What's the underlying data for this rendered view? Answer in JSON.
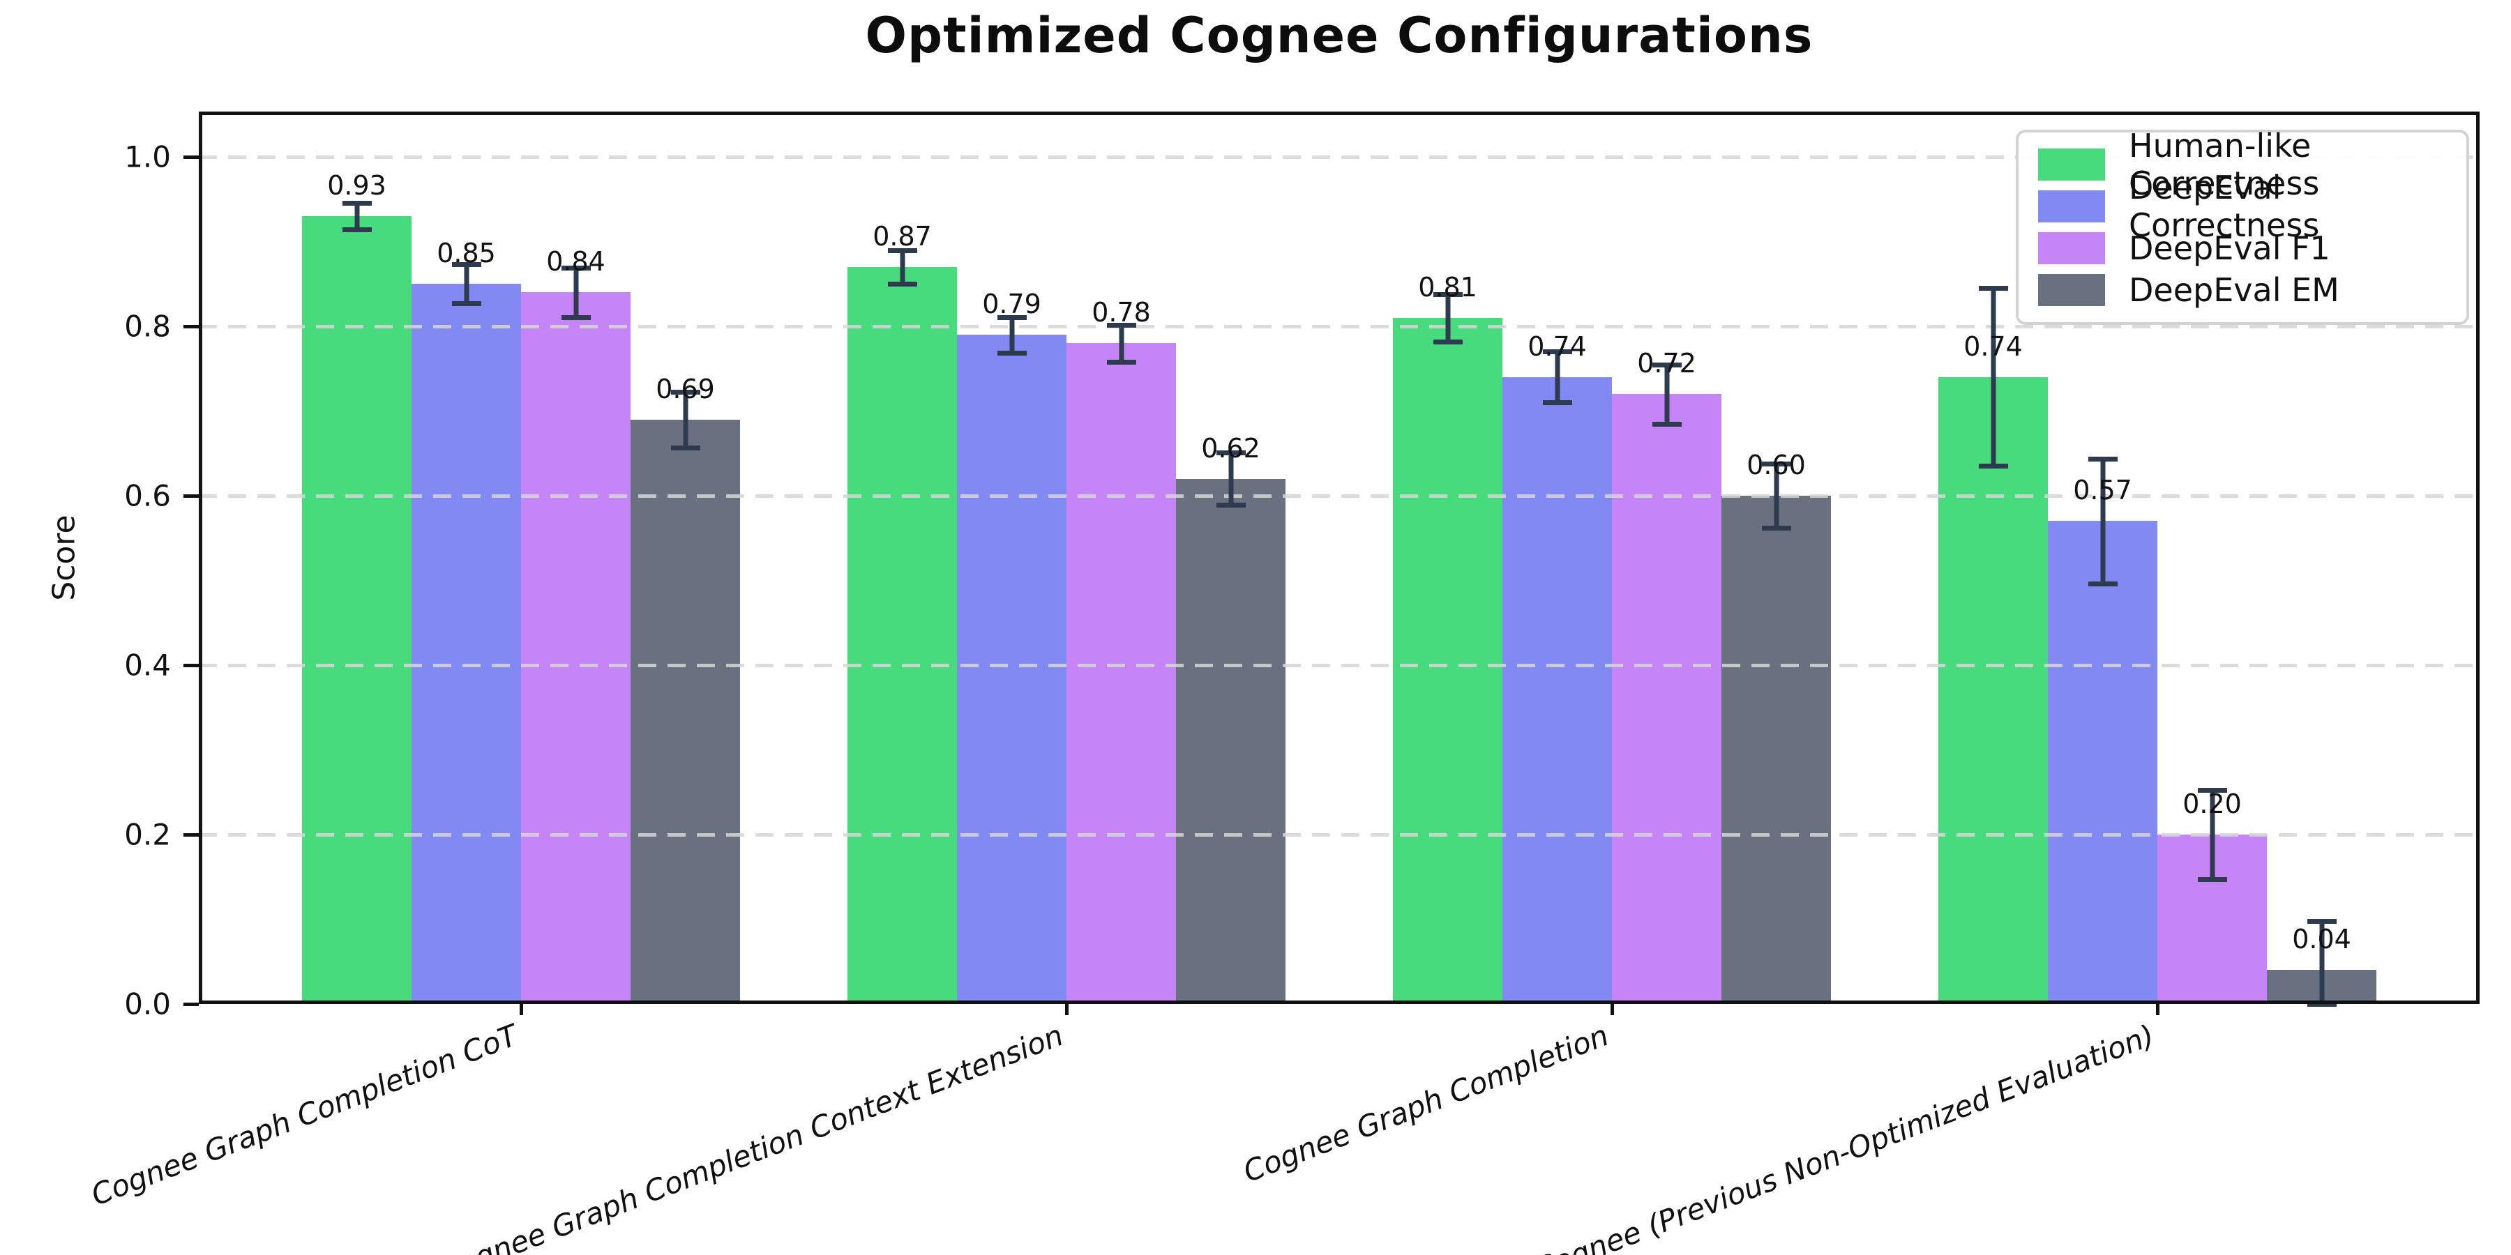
{
  "chart_data": {
    "type": "bar",
    "title": "Optimized Cognee Configurations",
    "ylabel": "Score",
    "ylim": [
      0.0,
      1.05
    ],
    "yticks": [
      0.0,
      0.2,
      0.4,
      0.6,
      0.8,
      1.0
    ],
    "grid": {
      "axis": "y",
      "style": "dashed",
      "color": "#d9d9d9",
      "drawn_over_bars": true
    },
    "legend_position": "upper right",
    "error_bar_color": "#2e3b4f",
    "categories": [
      "Cognee Graph Completion CoT",
      "Cognee Graph Completion Context Extension",
      "Cognee Graph Completion",
      "Cognee (Previous Non-Optimized Evaluation)"
    ],
    "series": [
      {
        "name": "Human-like Correctness",
        "color": "#47db7e",
        "values": [
          0.93,
          0.87,
          0.81,
          0.74
        ],
        "errors": [
          0.016,
          0.02,
          0.028,
          0.105
        ]
      },
      {
        "name": "DeepEval Correctness",
        "color": "#8289f2",
        "values": [
          0.85,
          0.79,
          0.74,
          0.57
        ],
        "errors": [
          0.023,
          0.021,
          0.03,
          0.074
        ]
      },
      {
        "name": "DeepEval F1",
        "color": "#c585f7",
        "values": [
          0.84,
          0.78,
          0.72,
          0.2
        ],
        "errors": [
          0.029,
          0.022,
          0.035,
          0.053
        ]
      },
      {
        "name": "DeepEval EM",
        "color": "#697180",
        "values": [
          0.69,
          0.62,
          0.6,
          0.04
        ],
        "errors": [
          0.033,
          0.031,
          0.038,
          0.058
        ]
      }
    ],
    "bar_value_labels": [
      [
        "0.93",
        "0.87",
        "0.81",
        "0.74"
      ],
      [
        "0.85",
        "0.79",
        "0.74",
        "0.57"
      ],
      [
        "0.84",
        "0.78",
        "0.72",
        "0.20"
      ],
      [
        "0.69",
        "0.62",
        "0.60",
        "0.04"
      ]
    ]
  }
}
